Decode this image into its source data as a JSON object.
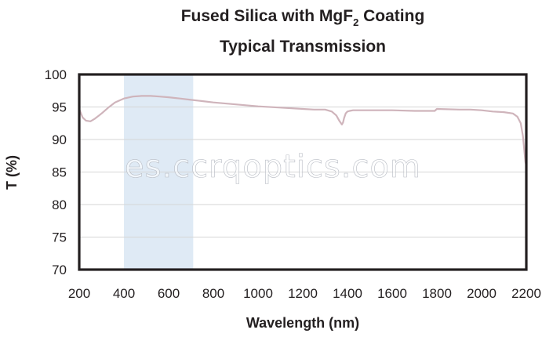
{
  "chart_data": {
    "type": "line",
    "title_line1_before_sub": "Fused Silica with MgF",
    "title_line1_sub": "2",
    "title_line1_after_sub": " Coating",
    "title_line2": "Typical Transmission",
    "xlabel": "Wavelength (nm)",
    "ylabel": "T (%)",
    "xlim": [
      200,
      2200
    ],
    "ylim": [
      70,
      100
    ],
    "x_ticks": [
      200,
      400,
      600,
      800,
      1000,
      1200,
      1400,
      1600,
      1800,
      2000,
      2200
    ],
    "y_ticks": [
      70,
      75,
      80,
      85,
      90,
      95,
      100
    ],
    "grid": true,
    "highlight_band": [
      400,
      710
    ],
    "series": [
      {
        "x": [
          200,
          215,
          230,
          250,
          270,
          300,
          330,
          360,
          400,
          440,
          480,
          520,
          560,
          600,
          650,
          700,
          750,
          800,
          900,
          1000,
          1100,
          1200,
          1250,
          1300,
          1330,
          1350,
          1365,
          1375,
          1380,
          1385,
          1392,
          1400,
          1410,
          1425,
          1450,
          1500,
          1600,
          1700,
          1790,
          1800,
          1900,
          1950,
          2000,
          2050,
          2100,
          2140,
          2160,
          2175,
          2185,
          2192,
          2196,
          2200
        ],
        "y": [
          94.7,
          93.4,
          92.9,
          92.8,
          93.2,
          94.0,
          94.9,
          95.7,
          96.3,
          96.6,
          96.7,
          96.7,
          96.6,
          96.5,
          96.3,
          96.1,
          95.9,
          95.7,
          95.4,
          95.1,
          94.9,
          94.7,
          94.6,
          94.6,
          94.3,
          93.7,
          92.8,
          92.3,
          92.6,
          93.3,
          94.0,
          94.3,
          94.4,
          94.5,
          94.5,
          94.5,
          94.5,
          94.4,
          94.4,
          94.7,
          94.6,
          94.6,
          94.5,
          94.3,
          94.2,
          94.0,
          93.5,
          92.5,
          90.5,
          88.0,
          86.5,
          86.0
        ]
      }
    ],
    "colors": {
      "line": "#cfb4bb",
      "band": "#dfeaf5",
      "frame": "#231f20",
      "grid": "#d6d6d6"
    }
  },
  "watermark": "es.ccrqoptics.com"
}
